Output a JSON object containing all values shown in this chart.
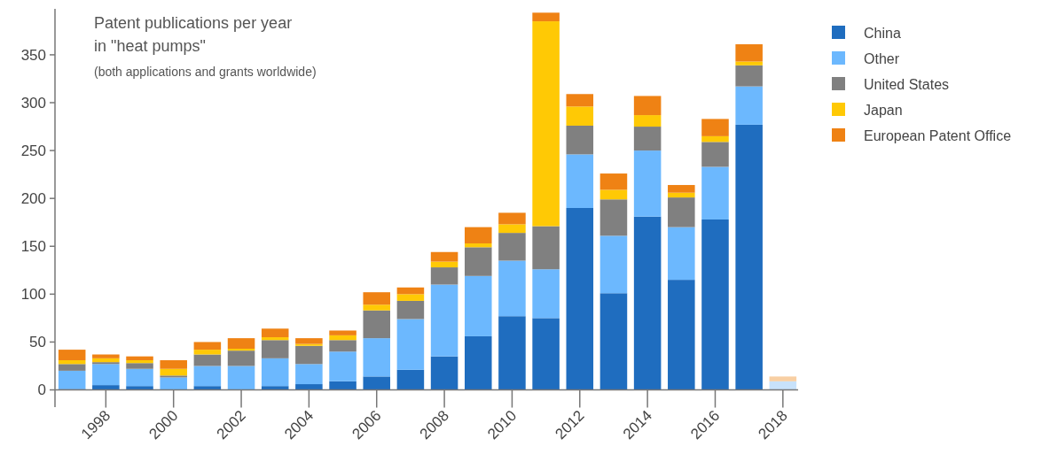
{
  "chart_data": {
    "type": "bar",
    "stacked": true,
    "title": "Patent publications per year in \"heat pumps\"",
    "subtitle": "(both applications and grants worldwide)",
    "categories": [
      null,
      "1998",
      null,
      "2000",
      null,
      "2002",
      null,
      "2004",
      null,
      "2006",
      null,
      "2008",
      null,
      "2010",
      null,
      "2012",
      null,
      "2014",
      null,
      "2016",
      null,
      "2018"
    ],
    "series": [
      {
        "name": "China",
        "color": "#1f6dbf",
        "values": [
          1,
          5,
          4,
          0,
          4,
          0,
          4,
          6,
          9,
          14,
          21,
          35,
          56,
          77,
          75,
          190,
          101,
          181,
          115,
          178,
          277,
          0
        ]
      },
      {
        "name": "Other",
        "color": "#6cb8fe",
        "colors": [
          "#6cb8fe",
          "#6cb8fe",
          "#6cb8fe",
          "#6cb8fe",
          "#6cb8fe",
          "#6cb8fe",
          "#6cb8fe",
          "#6cb8fe",
          "#6cb8fe",
          "#6cb8fe",
          "#6cb8fe",
          "#6cb8fe",
          "#6cb8fe",
          "#6cb8fe",
          "#6cb8fe",
          "#6cb8fe",
          "#6cb8fe",
          "#6cb8fe",
          "#6cb8fe",
          "#6cb8fe",
          "#6cb8fe",
          "#c8e2fb"
        ],
        "values": [
          19,
          22,
          18,
          13,
          21,
          25,
          29,
          21,
          31,
          40,
          53,
          75,
          63,
          58,
          51,
          56,
          60,
          69,
          55,
          55,
          40,
          9
        ]
      },
      {
        "name": "United States",
        "color": "#808080",
        "values": [
          7,
          2,
          6,
          2,
          12,
          16,
          19,
          19,
          12,
          29,
          19,
          18,
          30,
          29,
          45,
          30,
          38,
          25,
          31,
          26,
          22,
          0
        ]
      },
      {
        "name": "Japan",
        "color": "#ffc905",
        "values": [
          4,
          4,
          3,
          7,
          5,
          2,
          3,
          2,
          5,
          6,
          7,
          6,
          4,
          9,
          214,
          20,
          10,
          12,
          5,
          6,
          4,
          0
        ]
      },
      {
        "name": "European Patent Office",
        "color": "#ef8214",
        "colors": [
          "#ef8214",
          "#ef8214",
          "#ef8214",
          "#ef8214",
          "#ef8214",
          "#ef8214",
          "#ef8214",
          "#ef8214",
          "#ef8214",
          "#ef8214",
          "#ef8214",
          "#ef8214",
          "#ef8214",
          "#ef8214",
          "#ef8214",
          "#ef8214",
          "#ef8214",
          "#ef8214",
          "#ef8214",
          "#ef8214",
          "#ef8214",
          "#f8cfa3"
        ],
        "values": [
          11,
          4,
          4,
          9,
          8,
          11,
          9,
          6,
          5,
          13,
          7,
          10,
          17,
          12,
          9,
          13,
          17,
          20,
          8,
          18,
          18,
          5
        ]
      }
    ],
    "ylim": [
      -18,
      398
    ],
    "yticks": [
      0,
      50,
      100,
      150,
      200,
      250,
      300,
      350
    ],
    "grid": false,
    "legend": "top right"
  }
}
